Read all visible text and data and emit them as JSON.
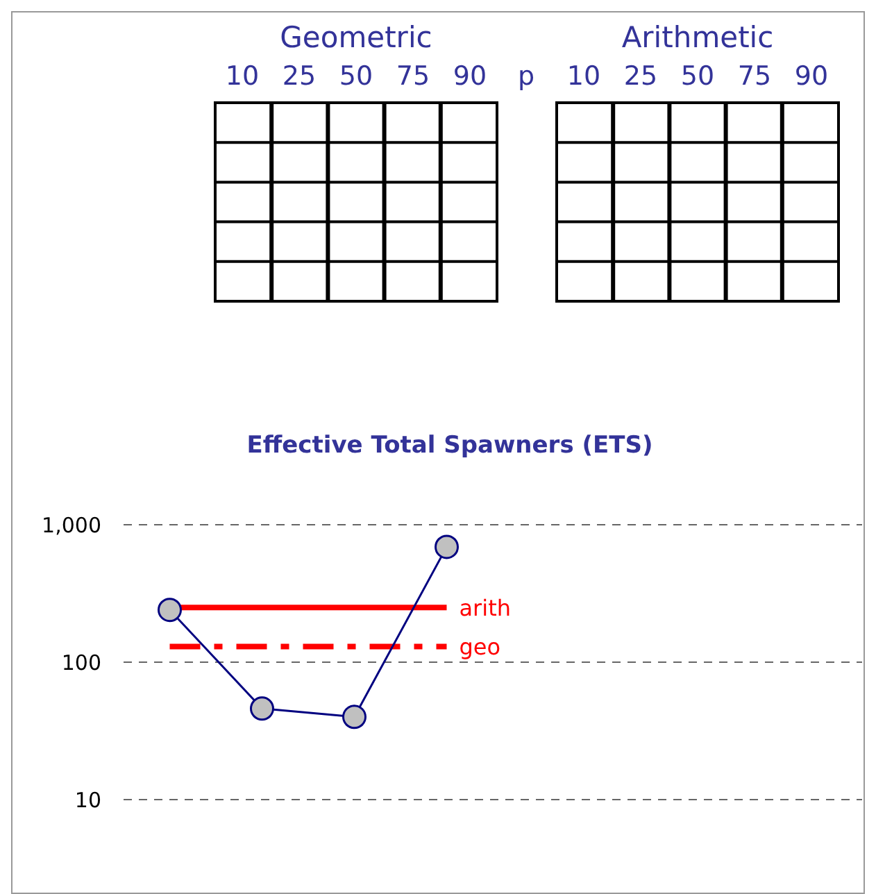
{
  "chart_data": {
    "type": "line",
    "title": "Effective Total Spawners (ETS)",
    "categories": [
      null,
      null,
      null,
      null,
      null,
      null,
      null,
      null
    ],
    "series": [
      {
        "color": "#000080",
        "values": [
          240,
          46,
          40,
          690,
          null,
          null,
          null,
          null
        ]
      }
    ],
    "log": true,
    "ylim": [
      10,
      1000
    ],
    "yticks": [
      10,
      100,
      {
        "value": 1000,
        "label": "1,000"
      }
    ],
    "grid": "y",
    "marker": "circle",
    "tick_labels": "y",
    "ref_lines": [
      {
        "axis": "y",
        "value": 250,
        "label": "arith",
        "color": "#ff0000",
        "line_style": "solid"
      },
      {
        "axis": "y",
        "value": 130,
        "label": "geo",
        "color": "#ff0000",
        "line_style": "dashed"
      }
    ],
    "annotations": [
      "Geometric",
      "10",
      "25",
      "50",
      "75",
      "90",
      "p",
      "Arithmetic",
      "10",
      "25",
      "50",
      "75",
      "90"
    ]
  }
}
